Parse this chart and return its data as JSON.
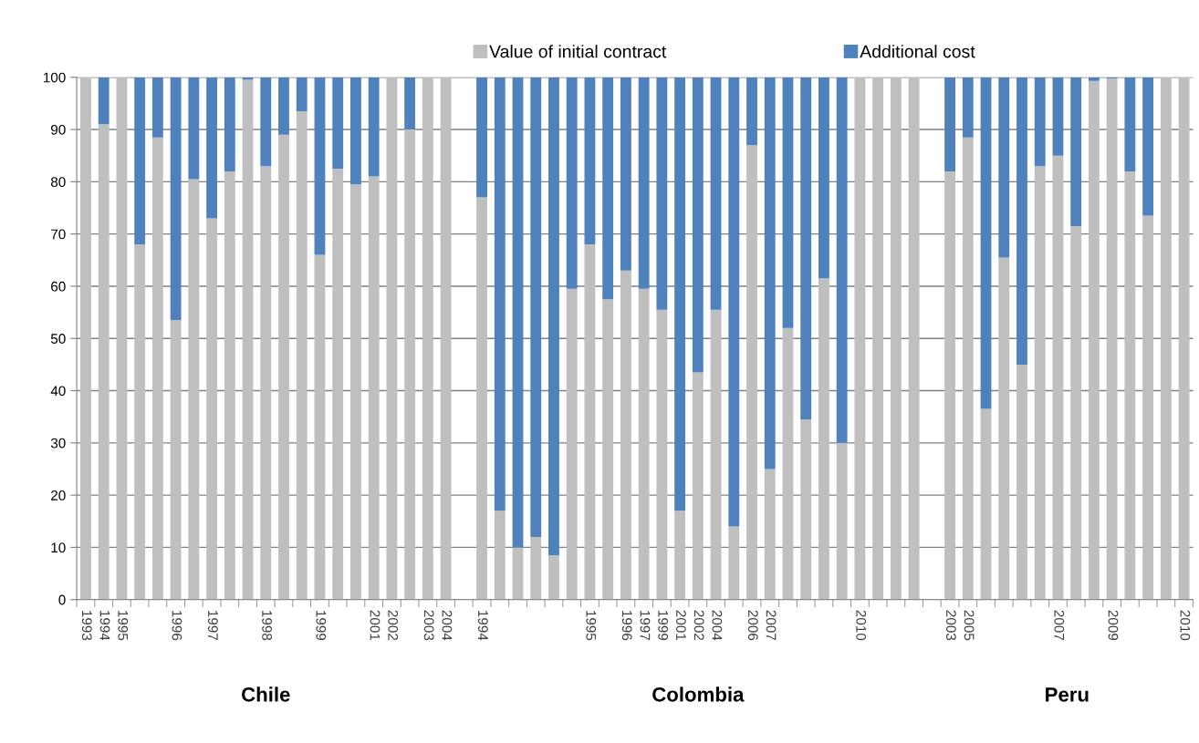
{
  "chart_data": {
    "type": "bar",
    "stacked": true,
    "categories": [
      "1993",
      "1994",
      "1995",
      null,
      null,
      "1996",
      null,
      "1997",
      null,
      null,
      "1998",
      null,
      null,
      "1999",
      null,
      null,
      "2001",
      "2002",
      null,
      "2003",
      "2004",
      null,
      "1994",
      null,
      null,
      null,
      null,
      null,
      "1995",
      null,
      "1996",
      "1997",
      "1999",
      "2001",
      "2002",
      "2004",
      null,
      "2006",
      "2007",
      null,
      null,
      null,
      null,
      "2010",
      null,
      null,
      null,
      null,
      "2003",
      "2005",
      null,
      null,
      null,
      null,
      "2007",
      null,
      null,
      "2009",
      null,
      null,
      null,
      "2010"
    ],
    "series": [
      {
        "name": "Value of initial contract",
        "color": "#bfbfbf",
        "values": [
          100,
          91,
          100,
          68,
          88.5,
          53.5,
          80.5,
          73,
          82,
          99.5,
          83,
          89,
          93.5,
          66,
          82.5,
          79.5,
          81,
          100,
          90,
          100,
          100,
          null,
          77,
          17,
          10,
          12,
          8.5,
          59.5,
          68,
          57.5,
          63,
          59.5,
          55.5,
          17,
          43.5,
          55.5,
          14,
          87,
          25,
          52,
          34.5,
          61.5,
          30,
          100,
          100,
          100,
          100,
          null,
          82,
          88.5,
          36.5,
          65.5,
          45,
          83,
          85,
          71.5,
          99.3,
          99.8,
          82,
          73.5,
          100,
          100
        ]
      },
      {
        "name": "Additional cost",
        "color": "#4f81bd",
        "values": [
          0,
          9,
          0,
          32,
          11.5,
          46.5,
          19.5,
          27,
          18,
          0.5,
          17,
          11,
          6.5,
          34,
          17.5,
          20.5,
          19,
          0,
          10,
          0,
          0,
          null,
          23,
          83,
          90,
          88,
          91.5,
          40.5,
          32,
          42.5,
          37,
          40.5,
          44.5,
          83,
          56.5,
          44.5,
          86,
          13,
          75,
          48,
          65.5,
          38.5,
          70,
          0,
          0,
          0,
          0,
          null,
          18,
          11.5,
          63.5,
          34.5,
          55,
          17,
          15,
          28.5,
          0.7,
          0.2,
          18,
          26.5,
          0,
          0
        ]
      }
    ],
    "ylim": [
      0,
      100
    ],
    "yticks": [
      0,
      10,
      20,
      30,
      40,
      50,
      60,
      70,
      80,
      90,
      100
    ],
    "grid": "y",
    "legend": "top",
    "annotations": [
      "Chile",
      "Colombia",
      "Peru"
    ]
  }
}
